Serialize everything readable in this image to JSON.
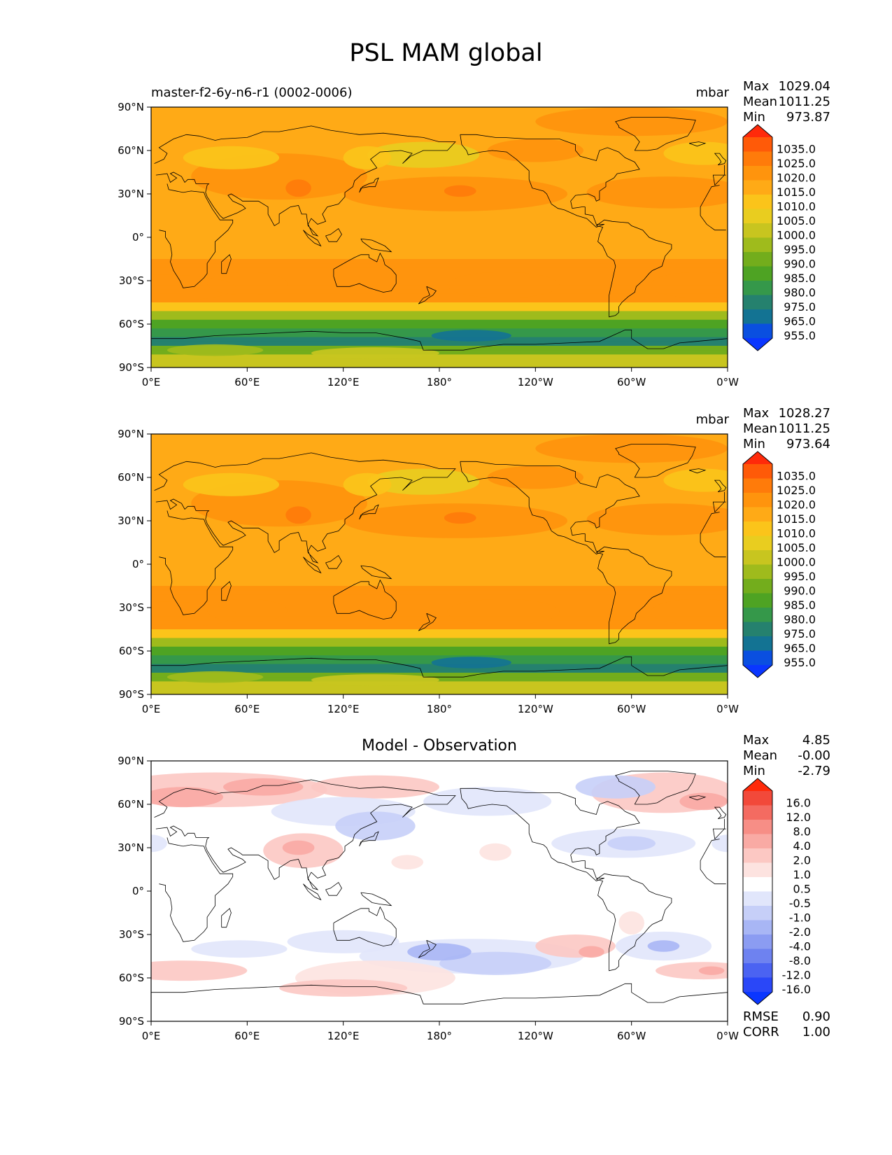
{
  "figure_title": "PSL MAM global",
  "chart_data": [
    {
      "type": "heatmap",
      "subtitle": "master-f2-6y-n6-r1 (0002-0006)",
      "units": "mbar",
      "xticks": [
        "0°E",
        "60°E",
        "120°E",
        "180°",
        "120°W",
        "60°W",
        "0°W"
      ],
      "yticks": [
        "90°N",
        "60°N",
        "30°N",
        "0°",
        "30°S",
        "60°S",
        "90°S"
      ],
      "xlim": [
        0,
        360
      ],
      "ylim": [
        -90,
        90
      ],
      "stats": [
        {
          "label": "Max",
          "value": "1029.04"
        },
        {
          "label": "Mean",
          "value": "1011.25"
        },
        {
          "label": "Min",
          "value": "973.87"
        }
      ],
      "colorbar": {
        "levels": [
          "1035.0",
          "1025.0",
          "1020.0",
          "1015.0",
          "1010.0",
          "1005.0",
          "1000.0",
          "995.0",
          "990.0",
          "985.0",
          "980.0",
          "975.0",
          "965.0",
          "955.0"
        ],
        "colors": [
          "#ff2a0a",
          "#ff5a08",
          "#ff7b0a",
          "#ff940d",
          "#ffaa16",
          "#fbc41a",
          "#e9cd1f",
          "#c8c51f",
          "#9fbb1c",
          "#73ad1c",
          "#4ea323",
          "#35984a",
          "#25816e",
          "#137393",
          "#0a4fe0",
          "#0a36ff"
        ]
      }
    },
    {
      "type": "heatmap",
      "subtitle": "",
      "units": "mbar",
      "xticks": [
        "0°E",
        "60°E",
        "120°E",
        "180°",
        "120°W",
        "60°W",
        "0°W"
      ],
      "yticks": [
        "90°N",
        "60°N",
        "30°N",
        "0°",
        "30°S",
        "60°S",
        "90°S"
      ],
      "xlim": [
        0,
        360
      ],
      "ylim": [
        -90,
        90
      ],
      "stats": [
        {
          "label": "Max",
          "value": "1028.27"
        },
        {
          "label": "Mean",
          "value": "1011.25"
        },
        {
          "label": "Min",
          "value": "973.64"
        }
      ],
      "colorbar": {
        "levels": [
          "1035.0",
          "1025.0",
          "1020.0",
          "1015.0",
          "1010.0",
          "1005.0",
          "1000.0",
          "995.0",
          "990.0",
          "985.0",
          "980.0",
          "975.0",
          "965.0",
          "955.0"
        ],
        "colors": [
          "#ff2a0a",
          "#ff5a08",
          "#ff7b0a",
          "#ff940d",
          "#ffaa16",
          "#fbc41a",
          "#e9cd1f",
          "#c8c51f",
          "#9fbb1c",
          "#73ad1c",
          "#4ea323",
          "#35984a",
          "#25816e",
          "#137393",
          "#0a4fe0",
          "#0a36ff"
        ]
      }
    },
    {
      "type": "heatmap",
      "title": "Model - Observation",
      "units": "",
      "xticks": [
        "0°E",
        "60°E",
        "120°E",
        "180°",
        "120°W",
        "60°W",
        "0°W"
      ],
      "yticks": [
        "90°N",
        "60°N",
        "30°N",
        "0°",
        "30°S",
        "60°S",
        "90°S"
      ],
      "xlim": [
        0,
        360
      ],
      "ylim": [
        -90,
        90
      ],
      "stats": [
        {
          "label": "Max",
          "value": "4.85"
        },
        {
          "label": "Mean",
          "value": "-0.00"
        },
        {
          "label": "Min",
          "value": "-2.79"
        }
      ],
      "bottom_stats": [
        {
          "label": "RMSE",
          "value": "0.90"
        },
        {
          "label": "CORR",
          "value": "1.00"
        }
      ],
      "colorbar": {
        "levels": [
          "16.0",
          "12.0",
          "8.0",
          "4.0",
          "2.0",
          "1.0",
          "0.5",
          "-0.5",
          "-1.0",
          "-2.0",
          "-4.0",
          "-8.0",
          "-12.0",
          "-16.0"
        ],
        "colors": [
          "#ff2a0a",
          "#f2493a",
          "#f46b61",
          "#f78e86",
          "#f9aaa4",
          "#fcc8c3",
          "#fde3e0",
          "#ffffff",
          "#e1e6fb",
          "#c6cff8",
          "#a8b6f5",
          "#8b9cf2",
          "#6e82f0",
          "#4b63f2",
          "#2a47f8",
          "#0a36ff"
        ]
      }
    }
  ]
}
